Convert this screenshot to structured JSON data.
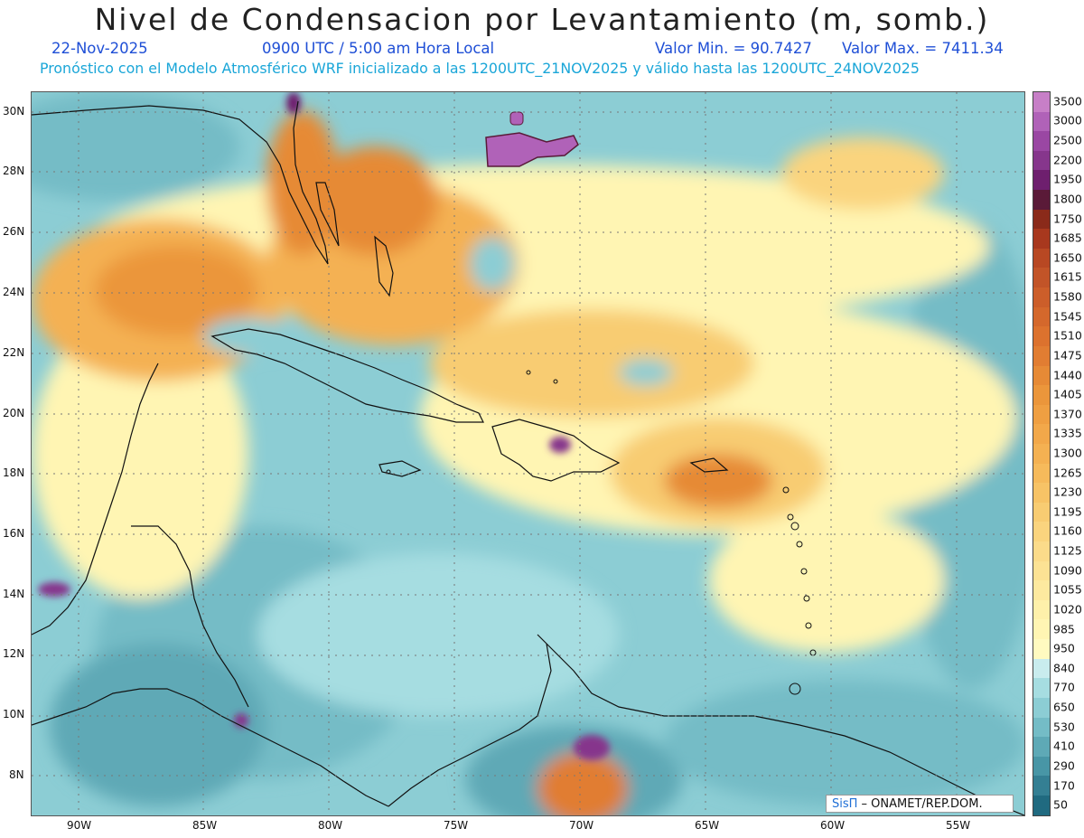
{
  "header": {
    "title": "Nivel de Condensacion por Levantamiento (m, somb.)",
    "date": "22-Nov-2025",
    "time": "0900 UTC / 5:00 am Hora Local",
    "min": "Valor Min. = 90.7427",
    "max": "Valor Max. = 7411.34",
    "forecast": "Pronóstico con el Modelo Atmosférico WRF inicializado a las 1200UTC_21NOV2025 y válido hasta las  1200UTC_24NOV2025"
  },
  "map": {
    "lat_ticks": [
      "30N",
      "28N",
      "26N",
      "24N",
      "22N",
      "20N",
      "18N",
      "16N",
      "14N",
      "12N",
      "10N",
      "8N"
    ],
    "lon_ticks": [
      "90W",
      "85W",
      "80W",
      "75W",
      "70W",
      "65W",
      "60W",
      "55W"
    ],
    "grid": "dotted"
  },
  "legend": {
    "labels": [
      "3500",
      "3000",
      "2500",
      "2200",
      "1950",
      "1800",
      "1750",
      "1685",
      "1650",
      "1615",
      "1580",
      "1545",
      "1510",
      "1475",
      "1440",
      "1405",
      "1370",
      "1335",
      "1300",
      "1265",
      "1230",
      "1195",
      "1160",
      "1125",
      "1090",
      "1055",
      "1020",
      "985",
      "950",
      "840",
      "770",
      "650",
      "530",
      "410",
      "290",
      "170",
      "50"
    ],
    "colors": [
      "#c77fc7",
      "#b062b8",
      "#9a47a3",
      "#86368c",
      "#6e1f6e",
      "#5a1a38",
      "#8a2a1a",
      "#a8381e",
      "#b84823",
      "#c25428",
      "#cc5e2a",
      "#d4682c",
      "#dc722e",
      "#e17d32",
      "#e68a36",
      "#eb963b",
      "#ef9f42",
      "#f2a84a",
      "#f4b152",
      "#f6ba5b",
      "#f7c366",
      "#f8cc72",
      "#fad47e",
      "#fbdb8a",
      "#fce294",
      "#fde99f",
      "#fef0aa",
      "#fff5b3",
      "#fffac0",
      "#c9ecee",
      "#a6dde1",
      "#8ccdd4",
      "#74bcc6",
      "#5ea9b6",
      "#4896a6",
      "#347f93",
      "#206a80"
    ]
  },
  "credit": {
    "brand": "SisΠ",
    "text": " – ONAMET/REP.DOM."
  }
}
